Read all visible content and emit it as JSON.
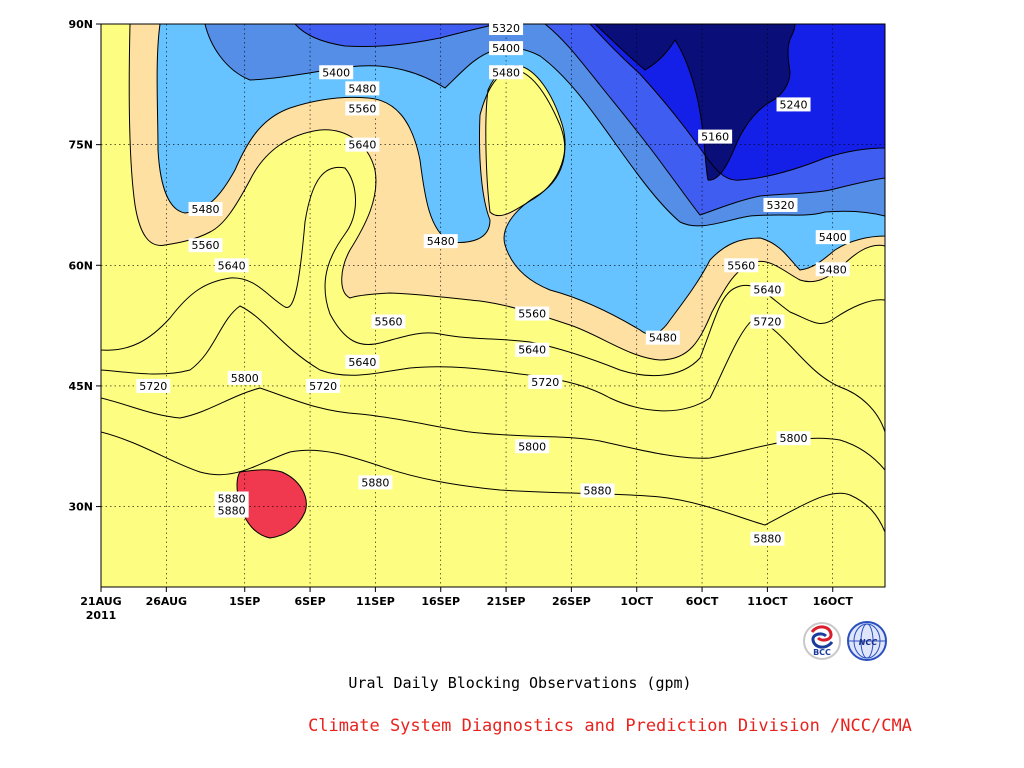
{
  "chart_data": {
    "type": "heatmap",
    "subtype": "filled-contour",
    "title": "Ural Daily Blocking Observations (gpm)",
    "credit": "Climate System Diagnostics and Prediction Division /NCC/CMA",
    "logos": [
      "BCC",
      "NCC"
    ],
    "x_axis": {
      "ticks": [
        "21AUG",
        "26AUG",
        "1SEP",
        "6SEP",
        "11SEP",
        "16SEP",
        "21SEP",
        "26SEP",
        "1OCT",
        "6OCT",
        "11OCT",
        "16OCT"
      ],
      "year_label": "2011",
      "range": [
        "2011-08-21",
        "2011-10-20"
      ]
    },
    "y_axis": {
      "ticks": [
        "90N",
        "75N",
        "60N",
        "45N",
        "30N"
      ],
      "range": [
        "20N",
        "90N"
      ]
    },
    "grid": true,
    "contour_levels": [
      5160,
      5240,
      5320,
      5400,
      5480,
      5560,
      5640,
      5720,
      5800,
      5880
    ],
    "colors": {
      "5880": "#f0384e",
      "5800": "#f5707a",
      "5720": "#f97d45",
      "5640": "#fda26a",
      "5560": "#fee0a2",
      "5480": "#fdfd81",
      "5400": "#67c3ff",
      "5320": "#548ee6",
      "5240": "#3f5df0",
      "5160": "#1420e8",
      "min": "#0a0e78"
    },
    "contour_labels": [
      {
        "text": "5320",
        "date": "2011-09-21",
        "lat": 89.5
      },
      {
        "text": "5400",
        "date": "2011-09-21",
        "lat": 87
      },
      {
        "text": "5480",
        "date": "2011-09-21",
        "lat": 84
      },
      {
        "text": "5400",
        "date": "2011-09-08",
        "lat": 84
      },
      {
        "text": "5480",
        "date": "2011-09-10",
        "lat": 82
      },
      {
        "text": "5560",
        "date": "2011-09-10",
        "lat": 79.5
      },
      {
        "text": "5640",
        "date": "2011-09-10",
        "lat": 75
      },
      {
        "text": "5240",
        "date": "2011-10-13",
        "lat": 80
      },
      {
        "text": "5160",
        "date": "2011-10-07",
        "lat": 76
      },
      {
        "text": "5480",
        "date": "2011-08-29",
        "lat": 67
      },
      {
        "text": "5560",
        "date": "2011-08-29",
        "lat": 62.5
      },
      {
        "text": "5640",
        "date": "2011-08-31",
        "lat": 60
      },
      {
        "text": "5480",
        "date": "2011-09-16",
        "lat": 63
      },
      {
        "text": "5320",
        "date": "2011-10-12",
        "lat": 67.5
      },
      {
        "text": "5400",
        "date": "2011-10-16",
        "lat": 63.5
      },
      {
        "text": "5560",
        "date": "2011-10-09",
        "lat": 60
      },
      {
        "text": "5480",
        "date": "2011-10-16",
        "lat": 59.5
      },
      {
        "text": "5640",
        "date": "2011-10-11",
        "lat": 57
      },
      {
        "text": "5560",
        "date": "2011-09-12",
        "lat": 53
      },
      {
        "text": "5560",
        "date": "2011-09-23",
        "lat": 54
      },
      {
        "text": "5480",
        "date": "2011-10-03",
        "lat": 51
      },
      {
        "text": "5720",
        "date": "2011-10-11",
        "lat": 53
      },
      {
        "text": "5640",
        "date": "2011-09-10",
        "lat": 48
      },
      {
        "text": "5640",
        "date": "2011-09-23",
        "lat": 49.5
      },
      {
        "text": "5720",
        "date": "2011-08-25",
        "lat": 45
      },
      {
        "text": "5800",
        "date": "2011-09-01",
        "lat": 46
      },
      {
        "text": "5720",
        "date": "2011-09-07",
        "lat": 45
      },
      {
        "text": "5720",
        "date": "2011-09-24",
        "lat": 45.5
      },
      {
        "text": "5800",
        "date": "2011-09-23",
        "lat": 37.5
      },
      {
        "text": "5800",
        "date": "2011-10-13",
        "lat": 38.5
      },
      {
        "text": "5880",
        "date": "2011-09-11",
        "lat": 33
      },
      {
        "text": "5880",
        "date": "2011-08-31",
        "lat": 31
      },
      {
        "text": "5880",
        "date": "2011-08-31",
        "lat": 29.5
      },
      {
        "text": "5880",
        "date": "2011-09-28",
        "lat": 32
      },
      {
        "text": "5880",
        "date": "2011-10-11",
        "lat": 26
      }
    ]
  }
}
